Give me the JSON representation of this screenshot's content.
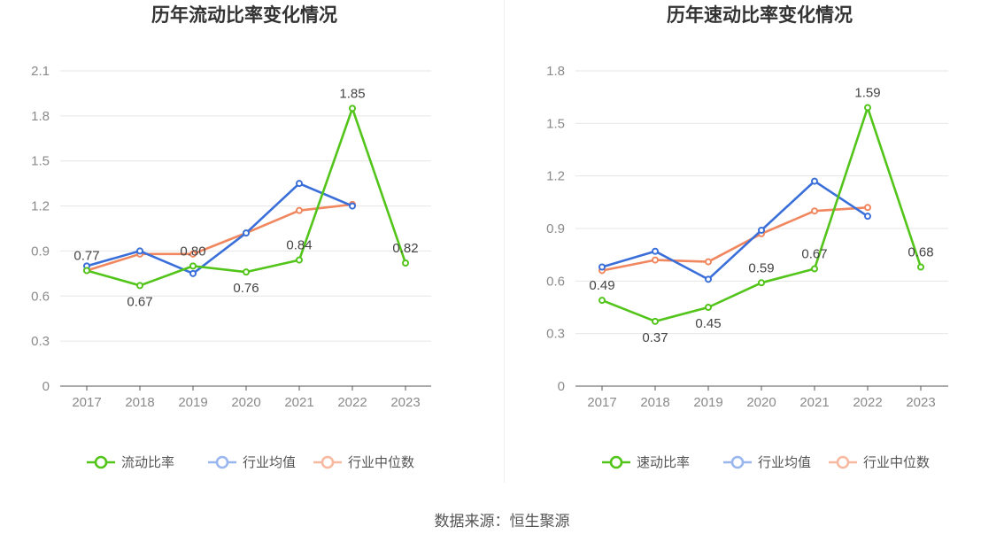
{
  "colors": {
    "main": "#52c41a",
    "industry_avg": "#3a6fd9",
    "industry_median": "#f0875f",
    "grid": "#e6e6e6",
    "axis": "#555555",
    "legend_avg": "#9ab6ee",
    "legend_median": "#f7b9a0"
  },
  "chart_data": [
    {
      "type": "line",
      "title": "历年流动比率变化情况",
      "categories": [
        "2017",
        "2018",
        "2019",
        "2020",
        "2021",
        "2022",
        "2023"
      ],
      "ylim": [
        0,
        2.1
      ],
      "yticks": [
        "0",
        "0.3",
        "0.6",
        "0.9",
        "1.2",
        "1.5",
        "1.8",
        "2.1"
      ],
      "series": [
        {
          "name": "流动比率",
          "values": [
            0.77,
            0.67,
            0.8,
            0.76,
            0.84,
            1.85,
            0.82
          ],
          "labels": [
            "0.77",
            "0.67",
            "0.80",
            "0.76",
            "0.84",
            "1.85",
            "0.82"
          ]
        },
        {
          "name": "行业均值",
          "values": [
            0.8,
            0.9,
            0.75,
            1.02,
            1.35,
            1.2,
            null
          ]
        },
        {
          "name": "行业中位数",
          "values": [
            0.77,
            0.88,
            0.88,
            1.02,
            1.17,
            1.21,
            null
          ]
        }
      ],
      "legend": [
        "流动比率",
        "行业均值",
        "行业中位数"
      ]
    },
    {
      "type": "line",
      "title": "历年速动比率变化情况",
      "categories": [
        "2017",
        "2018",
        "2019",
        "2020",
        "2021",
        "2022",
        "2023"
      ],
      "ylim": [
        0,
        1.8
      ],
      "yticks": [
        "0",
        "0.3",
        "0.6",
        "0.9",
        "1.2",
        "1.5",
        "1.8"
      ],
      "series": [
        {
          "name": "速动比率",
          "values": [
            0.49,
            0.37,
            0.45,
            0.59,
            0.67,
            1.59,
            0.68
          ],
          "labels": [
            "0.49",
            "0.37",
            "0.45",
            "0.59",
            "0.67",
            "1.59",
            "0.68"
          ]
        },
        {
          "name": "行业均值",
          "values": [
            0.68,
            0.77,
            0.61,
            0.89,
            1.17,
            0.97,
            null
          ]
        },
        {
          "name": "行业中位数",
          "values": [
            0.66,
            0.72,
            0.71,
            0.87,
            1.0,
            1.02,
            null
          ]
        }
      ],
      "legend": [
        "速动比率",
        "行业均值",
        "行业中位数"
      ]
    }
  ],
  "source_text": "数据来源：恒生聚源"
}
